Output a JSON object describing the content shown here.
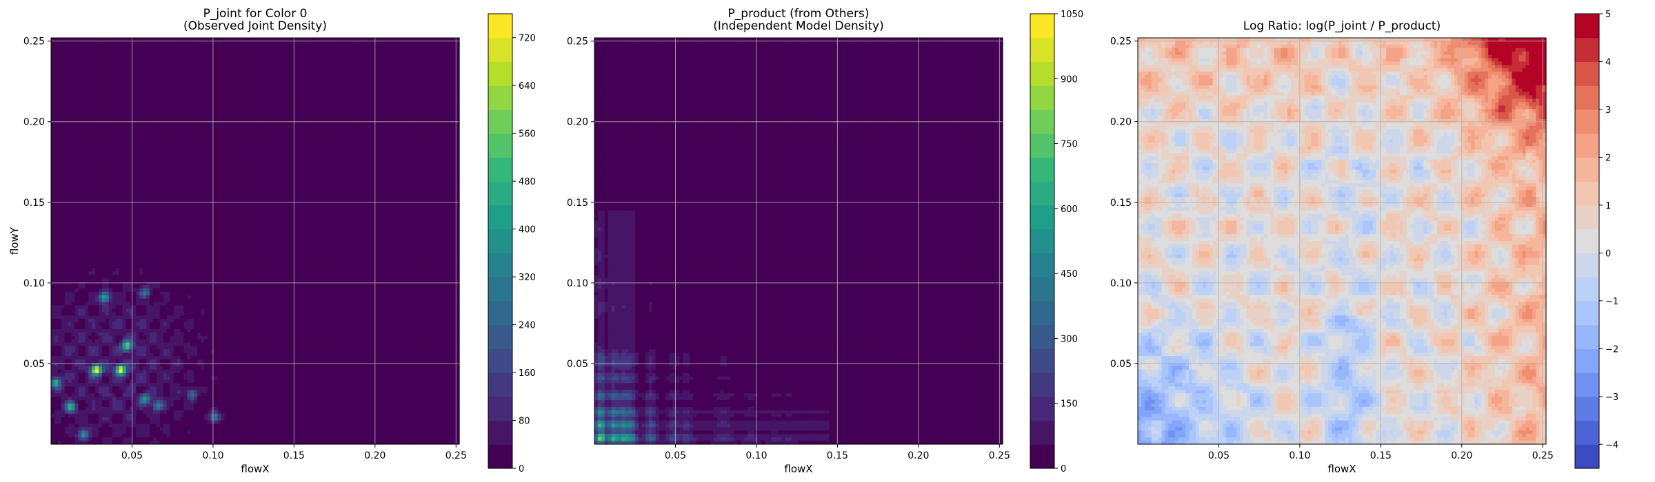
{
  "chart_data": [
    {
      "type": "heatmap",
      "title": "P_joint for Color 0",
      "subtitle": "(Observed Joint Density)",
      "xlabel": "flowX",
      "ylabel": "flowY",
      "xlim": [
        0.0,
        0.252
      ],
      "ylim": [
        0.0,
        0.252
      ],
      "xticks": [
        "0.05",
        "0.10",
        "0.15",
        "0.20",
        "0.25"
      ],
      "yticks": [
        "0.05",
        "0.10",
        "0.15",
        "0.20",
        "0.25"
      ],
      "grid": true,
      "colormap": "viridis",
      "colorbar": {
        "min": 0,
        "max": 760,
        "ticks": [
          "0",
          "80",
          "160",
          "240",
          "320",
          "400",
          "480",
          "560",
          "640",
          "720"
        ]
      },
      "peaks": [
        {
          "x": 0.028,
          "y": 0.046,
          "density": 740
        },
        {
          "x": 0.043,
          "y": 0.046,
          "density": 700
        },
        {
          "x": 0.047,
          "y": 0.061,
          "density": 520
        },
        {
          "x": 0.033,
          "y": 0.091,
          "density": 440
        },
        {
          "x": 0.012,
          "y": 0.023,
          "density": 470
        },
        {
          "x": 0.003,
          "y": 0.038,
          "density": 440
        },
        {
          "x": 0.02,
          "y": 0.006,
          "density": 360
        },
        {
          "x": 0.058,
          "y": 0.028,
          "density": 330
        },
        {
          "x": 0.066,
          "y": 0.024,
          "density": 320
        },
        {
          "x": 0.101,
          "y": 0.017,
          "density": 340
        },
        {
          "x": 0.087,
          "y": 0.031,
          "density": 260
        },
        {
          "x": 0.058,
          "y": 0.094,
          "density": 250
        }
      ]
    },
    {
      "type": "heatmap",
      "title": "P_product (from Others)",
      "subtitle": "(Independent Model Density)",
      "xlabel": "flowX",
      "ylabel": "",
      "xlim": [
        0.0,
        0.252
      ],
      "ylim": [
        0.0,
        0.252
      ],
      "xticks": [
        "0.05",
        "0.10",
        "0.15",
        "0.20",
        "0.25"
      ],
      "yticks": [
        "0.05",
        "0.10",
        "0.15",
        "0.20",
        "0.25"
      ],
      "grid": true,
      "colormap": "viridis",
      "colorbar": {
        "min": 0,
        "max": 1050,
        "ticks": [
          "0",
          "150",
          "300",
          "450",
          "600",
          "750",
          "900",
          "1050"
        ]
      },
      "x_marginal_peaks": [
        0.004,
        0.012,
        0.018,
        0.023,
        0.035,
        0.049,
        0.057,
        0.078,
        0.082,
        0.097,
        0.112,
        0.12
      ],
      "y_marginal_peaks": [
        0.004,
        0.012,
        0.02,
        0.03,
        0.041,
        0.05,
        0.055,
        0.085,
        0.1,
        0.117,
        0.134
      ],
      "max_density": 1050
    },
    {
      "type": "heatmap",
      "title": "Log Ratio: log(P_joint / P_product)",
      "subtitle": "",
      "xlabel": "flowX",
      "ylabel": "",
      "xlim": [
        0.0,
        0.252
      ],
      "ylim": [
        0.0,
        0.252
      ],
      "xticks": [
        "0.05",
        "0.10",
        "0.15",
        "0.20",
        "0.25"
      ],
      "yticks": [
        "0.05",
        "0.10",
        "0.15",
        "0.20",
        "0.25"
      ],
      "grid": true,
      "colormap": "coolwarm",
      "colorbar": {
        "min": -4.5,
        "max": 5,
        "ticks": [
          "5",
          "4",
          "3",
          "2",
          "1",
          "0",
          "−1",
          "−2",
          "−3",
          "−4"
        ]
      },
      "hot_region": {
        "x_from": 0.2,
        "y_from": 0.19,
        "max_log_ratio": 4.5
      },
      "cold_region": {
        "x_to": 0.05,
        "y_to": 0.05,
        "min_log_ratio": -3
      }
    }
  ]
}
